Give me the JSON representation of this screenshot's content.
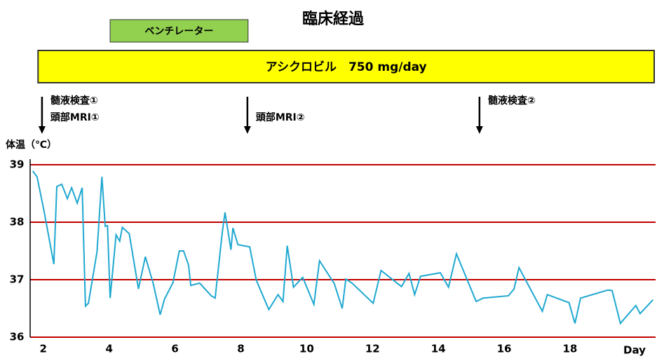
{
  "chart_data": {
    "type": "line",
    "title": "臨床経過",
    "y_label": "体温（℃）",
    "x_label": "Day",
    "xlim": [
      1.6,
      20.6
    ],
    "xticks": [
      2,
      4,
      6,
      8,
      10,
      12,
      14,
      16,
      18
    ],
    "ylim": [
      36,
      39
    ],
    "yticks": [
      36,
      37,
      38,
      39
    ],
    "grid": true,
    "grid_color": "#c00000",
    "series": [
      {
        "name": "体温",
        "color": "#1fa8d0",
        "x": [
          1.68,
          1.81,
          2.02,
          2.32,
          2.41,
          2.56,
          2.73,
          2.86,
          3.03,
          3.18,
          3.28,
          3.37,
          3.63,
          3.78,
          3.88,
          3.95,
          4.03,
          4.21,
          4.32,
          4.4,
          4.61,
          4.89,
          5.1,
          5.34,
          5.55,
          5.68,
          5.94,
          6.13,
          6.26,
          6.41,
          6.48,
          6.75,
          7.1,
          7.22,
          7.44,
          7.52,
          7.7,
          7.76,
          7.91,
          8.27,
          8.47,
          8.85,
          9.13,
          9.28,
          9.41,
          9.6,
          9.88,
          10.22,
          10.39,
          10.84,
          11.08,
          11.19,
          11.38,
          12.02,
          12.26,
          12.88,
          13.11,
          13.28,
          13.46,
          14.06,
          14.31,
          14.55,
          15.15,
          15.36,
          16.13,
          16.3,
          16.45,
          17.16,
          17.31,
          17.97,
          18.15,
          18.32,
          19.15,
          19.28,
          19.53,
          20.0,
          20.13,
          20.52
        ],
        "values": [
          38.89,
          38.79,
          38.2,
          37.27,
          38.62,
          38.66,
          38.41,
          38.6,
          38.33,
          38.6,
          36.54,
          36.59,
          37.48,
          38.79,
          37.93,
          37.94,
          36.68,
          37.78,
          37.67,
          37.91,
          37.8,
          36.84,
          37.4,
          36.93,
          36.39,
          36.66,
          36.95,
          37.5,
          37.5,
          37.26,
          36.9,
          36.94,
          36.72,
          36.68,
          37.84,
          38.17,
          37.52,
          37.9,
          37.61,
          37.57,
          36.99,
          36.48,
          36.74,
          36.62,
          37.59,
          36.87,
          37.04,
          36.57,
          37.33,
          36.93,
          36.5,
          37.01,
          36.94,
          36.59,
          37.16,
          36.88,
          37.11,
          36.74,
          37.06,
          37.12,
          36.87,
          37.45,
          36.62,
          36.68,
          36.72,
          36.84,
          37.21,
          36.45,
          36.74,
          36.6,
          36.24,
          36.68,
          36.82,
          36.81,
          36.24,
          36.55,
          36.41,
          36.65
        ]
      }
    ],
    "therapies": [
      {
        "label": "ベンチレーター",
        "start": 4.03,
        "end": 8.22,
        "color": "#92d050"
      },
      {
        "label": "アシクロビル　750 mg/day",
        "start": 1.84,
        "end": 20.6,
        "color": "#ffff00"
      }
    ],
    "events": [
      {
        "x": 1.96,
        "lines": [
          "髄液検査①",
          "頭部MRI①"
        ]
      },
      {
        "x": 8.2,
        "lines": [
          "頭部MRI②"
        ]
      },
      {
        "x": 15.25,
        "lines": [
          "髄液検査②"
        ]
      }
    ]
  }
}
